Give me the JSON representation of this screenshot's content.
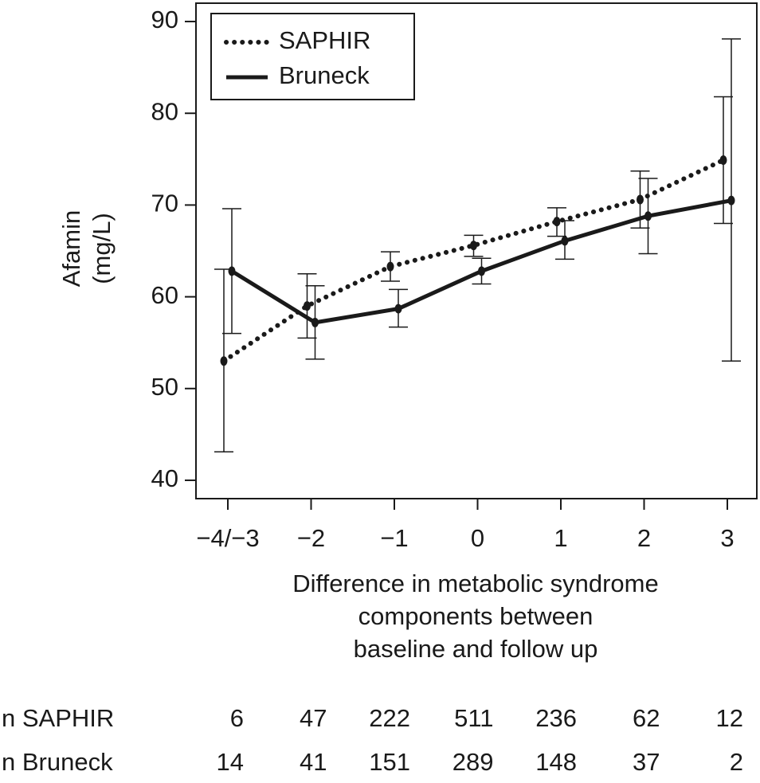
{
  "chart_data": {
    "type": "line",
    "ylabel": [
      "Afamin",
      "(mg/L)"
    ],
    "xlabel": [
      "Difference in metabolic syndrome",
      "components between",
      "baseline and follow up"
    ],
    "categories": [
      "−4/−3",
      "−2",
      "−1",
      "0",
      "1",
      "2",
      "3"
    ],
    "ylim": [
      38,
      92
    ],
    "yticks": [
      40,
      50,
      60,
      70,
      80,
      90
    ],
    "legend": "top-left",
    "series": [
      {
        "name": "SAPHIR",
        "color": "#1a1a1a",
        "dash": "dotted",
        "values": [
          53,
          59,
          63.3,
          65.6,
          68.2,
          70.6,
          74.9
        ],
        "lower": [
          43.1,
          55.5,
          61.7,
          64.4,
          66.6,
          67.5,
          68
        ],
        "upper": [
          63,
          62.5,
          64.9,
          66.7,
          69.7,
          73.7,
          81.8
        ]
      },
      {
        "name": "Bruneck",
        "color": "#1a1a1a",
        "dash": "solid",
        "values": [
          62.8,
          57.2,
          58.7,
          62.8,
          66.1,
          68.8,
          70.5
        ],
        "lower": [
          56,
          53.2,
          56.7,
          61.4,
          64.1,
          64.7,
          53
        ],
        "upper": [
          69.6,
          61.2,
          60.8,
          64.2,
          68.3,
          72.9,
          88.1
        ]
      }
    ],
    "n_table": [
      {
        "label": "n SAPHIR",
        "values": [
          "6",
          "47",
          "222",
          "511",
          "236",
          "62",
          "12"
        ]
      },
      {
        "label": "n Bruneck",
        "values": [
          "14",
          "41",
          "151",
          "289",
          "148",
          "37",
          "2"
        ]
      }
    ]
  }
}
